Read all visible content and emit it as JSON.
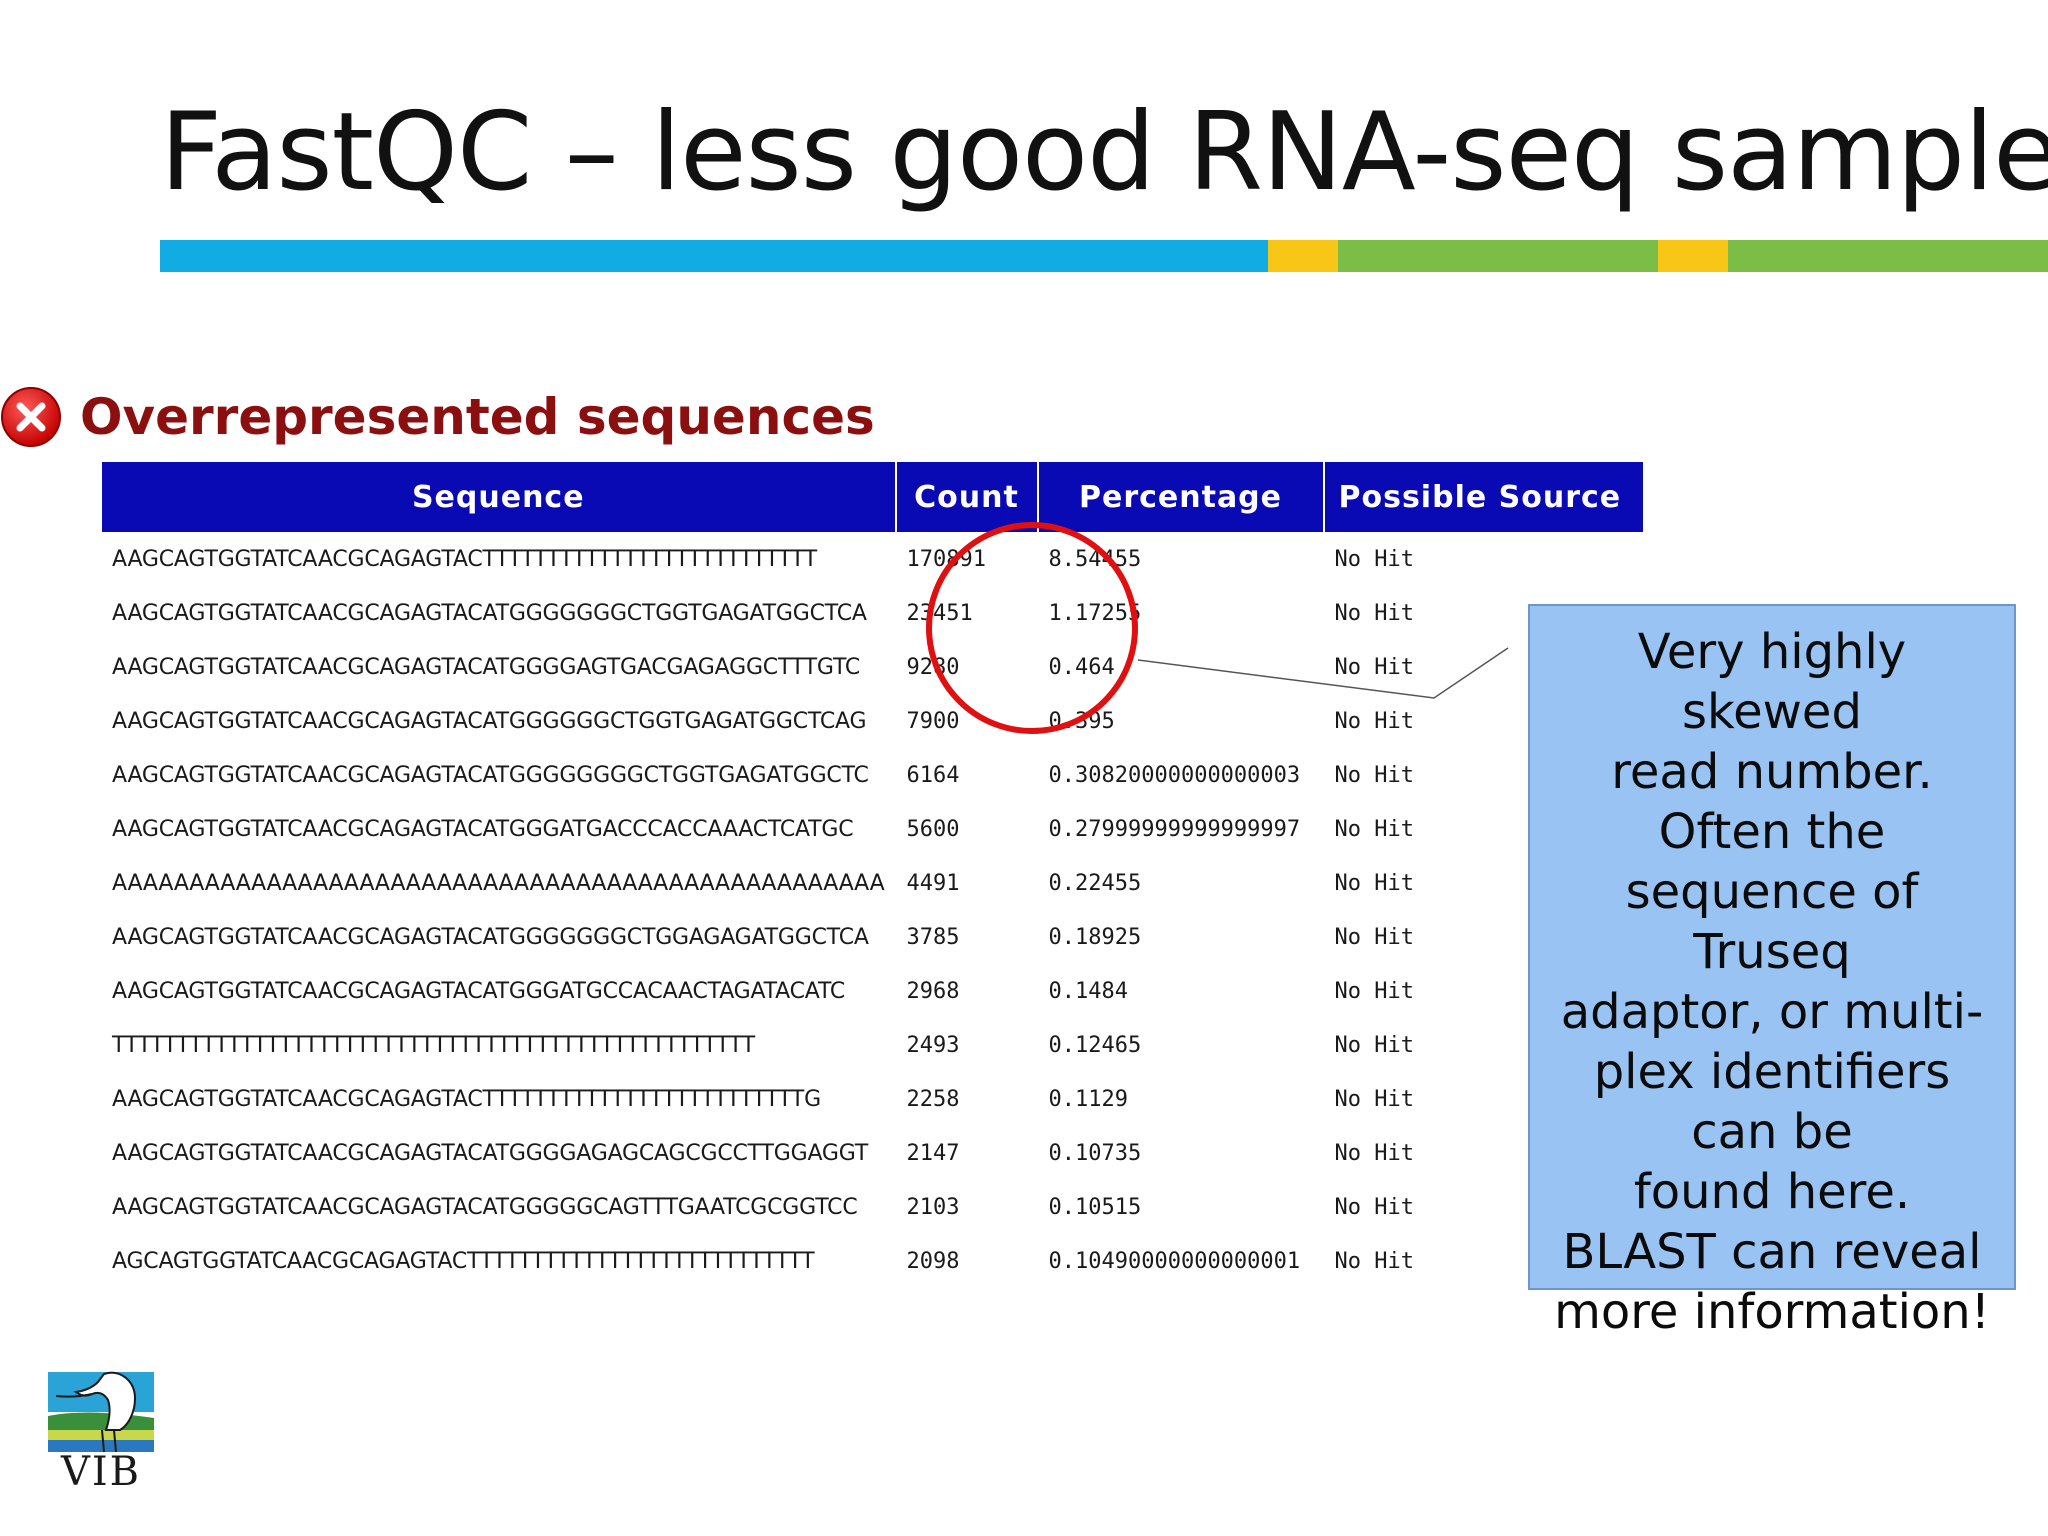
{
  "slide": {
    "title": "FastQC – less good RNA-seq sample"
  },
  "title_bar": {
    "colors": [
      "#12ace4",
      "#f7c616",
      "#7cbd47"
    ]
  },
  "section": {
    "title": "Overrepresented sequences",
    "icon": "error-icon",
    "title_color": "#8b0f0f"
  },
  "table": {
    "headers": {
      "sequence": "Sequence",
      "count": "Count",
      "percentage": "Percentage",
      "source": "Possible Source"
    },
    "header_color": "#0a0ab4",
    "rows": [
      {
        "sequence": "AAGCAGTGGTATCAACGCAGAGTACTTTTTTTTTTTTTTTTTTTTTTTTTT",
        "count": "170891",
        "percentage": "8.54455",
        "source": "No Hit"
      },
      {
        "sequence": "AAGCAGTGGTATCAACGCAGAGTACATGGGGGGGCTGGTGAGATGGCTCA",
        "count": "23451",
        "percentage": "1.17255",
        "source": "No Hit"
      },
      {
        "sequence": "AAGCAGTGGTATCAACGCAGAGTACATGGGGAGTGACGAGAGGCTTTGTC",
        "count": "9280",
        "percentage": "0.464",
        "source": "No Hit"
      },
      {
        "sequence": "AAGCAGTGGTATCAACGCAGAGTACATGGGGGGCTGGTGAGATGGCTCAG",
        "count": "7900",
        "percentage": "0.395",
        "source": "No Hit"
      },
      {
        "sequence": "AAGCAGTGGTATCAACGCAGAGTACATGGGGGGGGCTGGTGAGATGGCTC",
        "count": "6164",
        "percentage": "0.30820000000000003",
        "source": "No Hit"
      },
      {
        "sequence": "AAGCAGTGGTATCAACGCAGAGTACATGGGATGACCCACCAAACTCATGC",
        "count": "5600",
        "percentage": "0.27999999999999997",
        "source": "No Hit"
      },
      {
        "sequence": "AAAAAAAAAAAAAAAAAAAAAAAAAAAAAAAAAAAAAAAAAAAAAAAAAA",
        "count": "4491",
        "percentage": "0.22455",
        "source": "No Hit"
      },
      {
        "sequence": "AAGCAGTGGTATCAACGCAGAGTACATGGGGGGGCTGGAGAGATGGCTCA",
        "count": "3785",
        "percentage": "0.18925",
        "source": "No Hit"
      },
      {
        "sequence": "AAGCAGTGGTATCAACGCAGAGTACATGGGATGCCACAACTAGATACATC",
        "count": "2968",
        "percentage": "0.1484",
        "source": "No Hit"
      },
      {
        "sequence": "TTTTTTTTTTTTTTTTTTTTTTTTTTTTTTTTTTTTTTTTTTTTTTTTTT",
        "count": "2493",
        "percentage": "0.12465",
        "source": "No Hit"
      },
      {
        "sequence": "AAGCAGTGGTATCAACGCAGAGTACTTTTTTTTTTTTTTTTTTTTTTTTTG",
        "count": "2258",
        "percentage": "0.1129",
        "source": "No Hit"
      },
      {
        "sequence": "AAGCAGTGGTATCAACGCAGAGTACATGGGGAGAGCAGCGCCTTGGAGGT",
        "count": "2147",
        "percentage": "0.10735",
        "source": "No Hit"
      },
      {
        "sequence": "AAGCAGTGGTATCAACGCAGAGTACATGGGGGCAGTTTGAATCGCGGTCC",
        "count": "2103",
        "percentage": "0.10515",
        "source": "No Hit"
      },
      {
        "sequence": "AGCAGTGGTATCAACGCAGAGTACTTTTTTTTTTTTTTTTTTTTTTTTTTT",
        "count": "2098",
        "percentage": "0.10490000000000001",
        "source": "No Hit"
      }
    ]
  },
  "callout": {
    "lines": [
      "Very highly skewed",
      "read number.",
      "Often the",
      "sequence of Truseq",
      "adaptor, or multi-",
      "plex identifiers",
      "can be",
      "found here.",
      "BLAST can reveal",
      "more information!"
    ],
    "background": "#99c3f2"
  },
  "logo": {
    "text": "VIB"
  }
}
